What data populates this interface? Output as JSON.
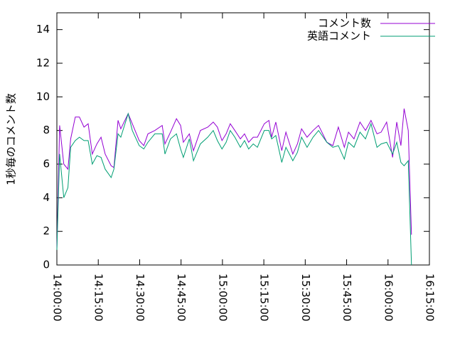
{
  "chart_data": {
    "type": "line",
    "y_label": "1秒毎のコメント数",
    "x": [
      "14:00:00",
      "14:01:00",
      "14:02:30",
      "14:04:00",
      "14:05:00",
      "14:06:40",
      "14:08:10",
      "14:09:50",
      "14:11:20",
      "14:12:50",
      "14:14:30",
      "14:16:00",
      "14:17:30",
      "14:19:40",
      "14:20:40",
      "14:22:10",
      "14:23:10",
      "14:25:50",
      "14:27:20",
      "14:29:50",
      "14:31:30",
      "14:33:00",
      "14:35:30",
      "14:38:10",
      "14:39:10",
      "14:41:10",
      "14:43:20",
      "14:44:50",
      "14:45:50",
      "14:48:00",
      "14:49:30",
      "14:52:00",
      "14:54:40",
      "14:56:40",
      "14:58:10",
      "14:59:50",
      "15:01:20",
      "15:02:50",
      "15:04:30",
      "15:06:30",
      "15:08:00",
      "15:09:30",
      "15:11:10",
      "15:12:40",
      "15:15:10",
      "15:16:50",
      "15:17:50",
      "15:19:20",
      "15:21:30",
      "15:23:00",
      "15:25:30",
      "15:27:10",
      "15:28:40",
      "15:30:40",
      "15:32:50",
      "15:34:50",
      "15:37:50",
      "15:40:00",
      "15:42:00",
      "15:44:10",
      "15:45:40",
      "15:47:40",
      "15:49:50",
      "15:51:50",
      "15:53:50",
      "15:56:00",
      "15:57:30",
      "15:59:30",
      "16:01:40",
      "16:03:10",
      "16:04:40",
      "16:05:50",
      "16:07:20",
      "16:08:30"
    ],
    "series": [
      {
        "name": "コメント数",
        "color": "#9400d3",
        "values": [
          1.0,
          8.3,
          6.0,
          5.7,
          7.5,
          8.8,
          8.8,
          8.2,
          8.4,
          6.6,
          7.2,
          7.6,
          6.6,
          5.9,
          5.8,
          8.6,
          8.1,
          9.0,
          8.4,
          7.4,
          7.1,
          7.8,
          8.0,
          8.3,
          7.2,
          7.9,
          8.7,
          8.3,
          7.3,
          7.8,
          6.8,
          8.0,
          8.2,
          8.5,
          8.2,
          7.4,
          7.8,
          8.4,
          8.0,
          7.5,
          7.8,
          7.3,
          7.6,
          7.6,
          8.4,
          8.6,
          7.6,
          8.5,
          6.8,
          7.9,
          6.6,
          7.2,
          8.1,
          7.6,
          8.0,
          8.3,
          7.3,
          7.1,
          8.2,
          7.0,
          7.9,
          7.5,
          8.5,
          8.0,
          8.6,
          7.8,
          7.9,
          8.5,
          6.4,
          8.5,
          7.1,
          9.3,
          8.0,
          1.8
        ]
      },
      {
        "name": "英語コメント",
        "color": "#009e73",
        "values": [
          0.9,
          6.6,
          4.0,
          4.6,
          7.0,
          7.4,
          7.6,
          7.4,
          7.4,
          6.0,
          6.5,
          6.4,
          5.7,
          5.2,
          5.7,
          7.8,
          7.6,
          9.0,
          8.0,
          7.1,
          6.9,
          7.3,
          7.8,
          7.8,
          6.6,
          7.5,
          7.8,
          6.9,
          6.4,
          7.5,
          6.2,
          7.2,
          7.6,
          8.0,
          7.4,
          6.9,
          7.3,
          8.0,
          7.6,
          7.0,
          7.4,
          6.9,
          7.2,
          7.0,
          8.0,
          8.0,
          7.5,
          7.7,
          6.1,
          7.0,
          6.2,
          6.7,
          7.6,
          7.0,
          7.6,
          8.0,
          7.3,
          7.0,
          7.1,
          6.3,
          7.3,
          7.0,
          7.9,
          7.5,
          8.4,
          7.0,
          7.2,
          7.3,
          6.6,
          7.3,
          6.1,
          5.9,
          6.2,
          0
        ]
      }
    ],
    "xlim": [
      "14:00:00",
      "16:15:00"
    ],
    "xticks": [
      "14:00:00",
      "14:15:00",
      "14:30:00",
      "14:45:00",
      "15:00:00",
      "15:15:00",
      "15:30:00",
      "15:45:00",
      "16:00:00",
      "16:15:00"
    ],
    "ylim": [
      0,
      15
    ],
    "yticks": [
      0,
      2,
      4,
      6,
      8,
      10,
      12,
      14
    ],
    "legend": "top-right"
  }
}
